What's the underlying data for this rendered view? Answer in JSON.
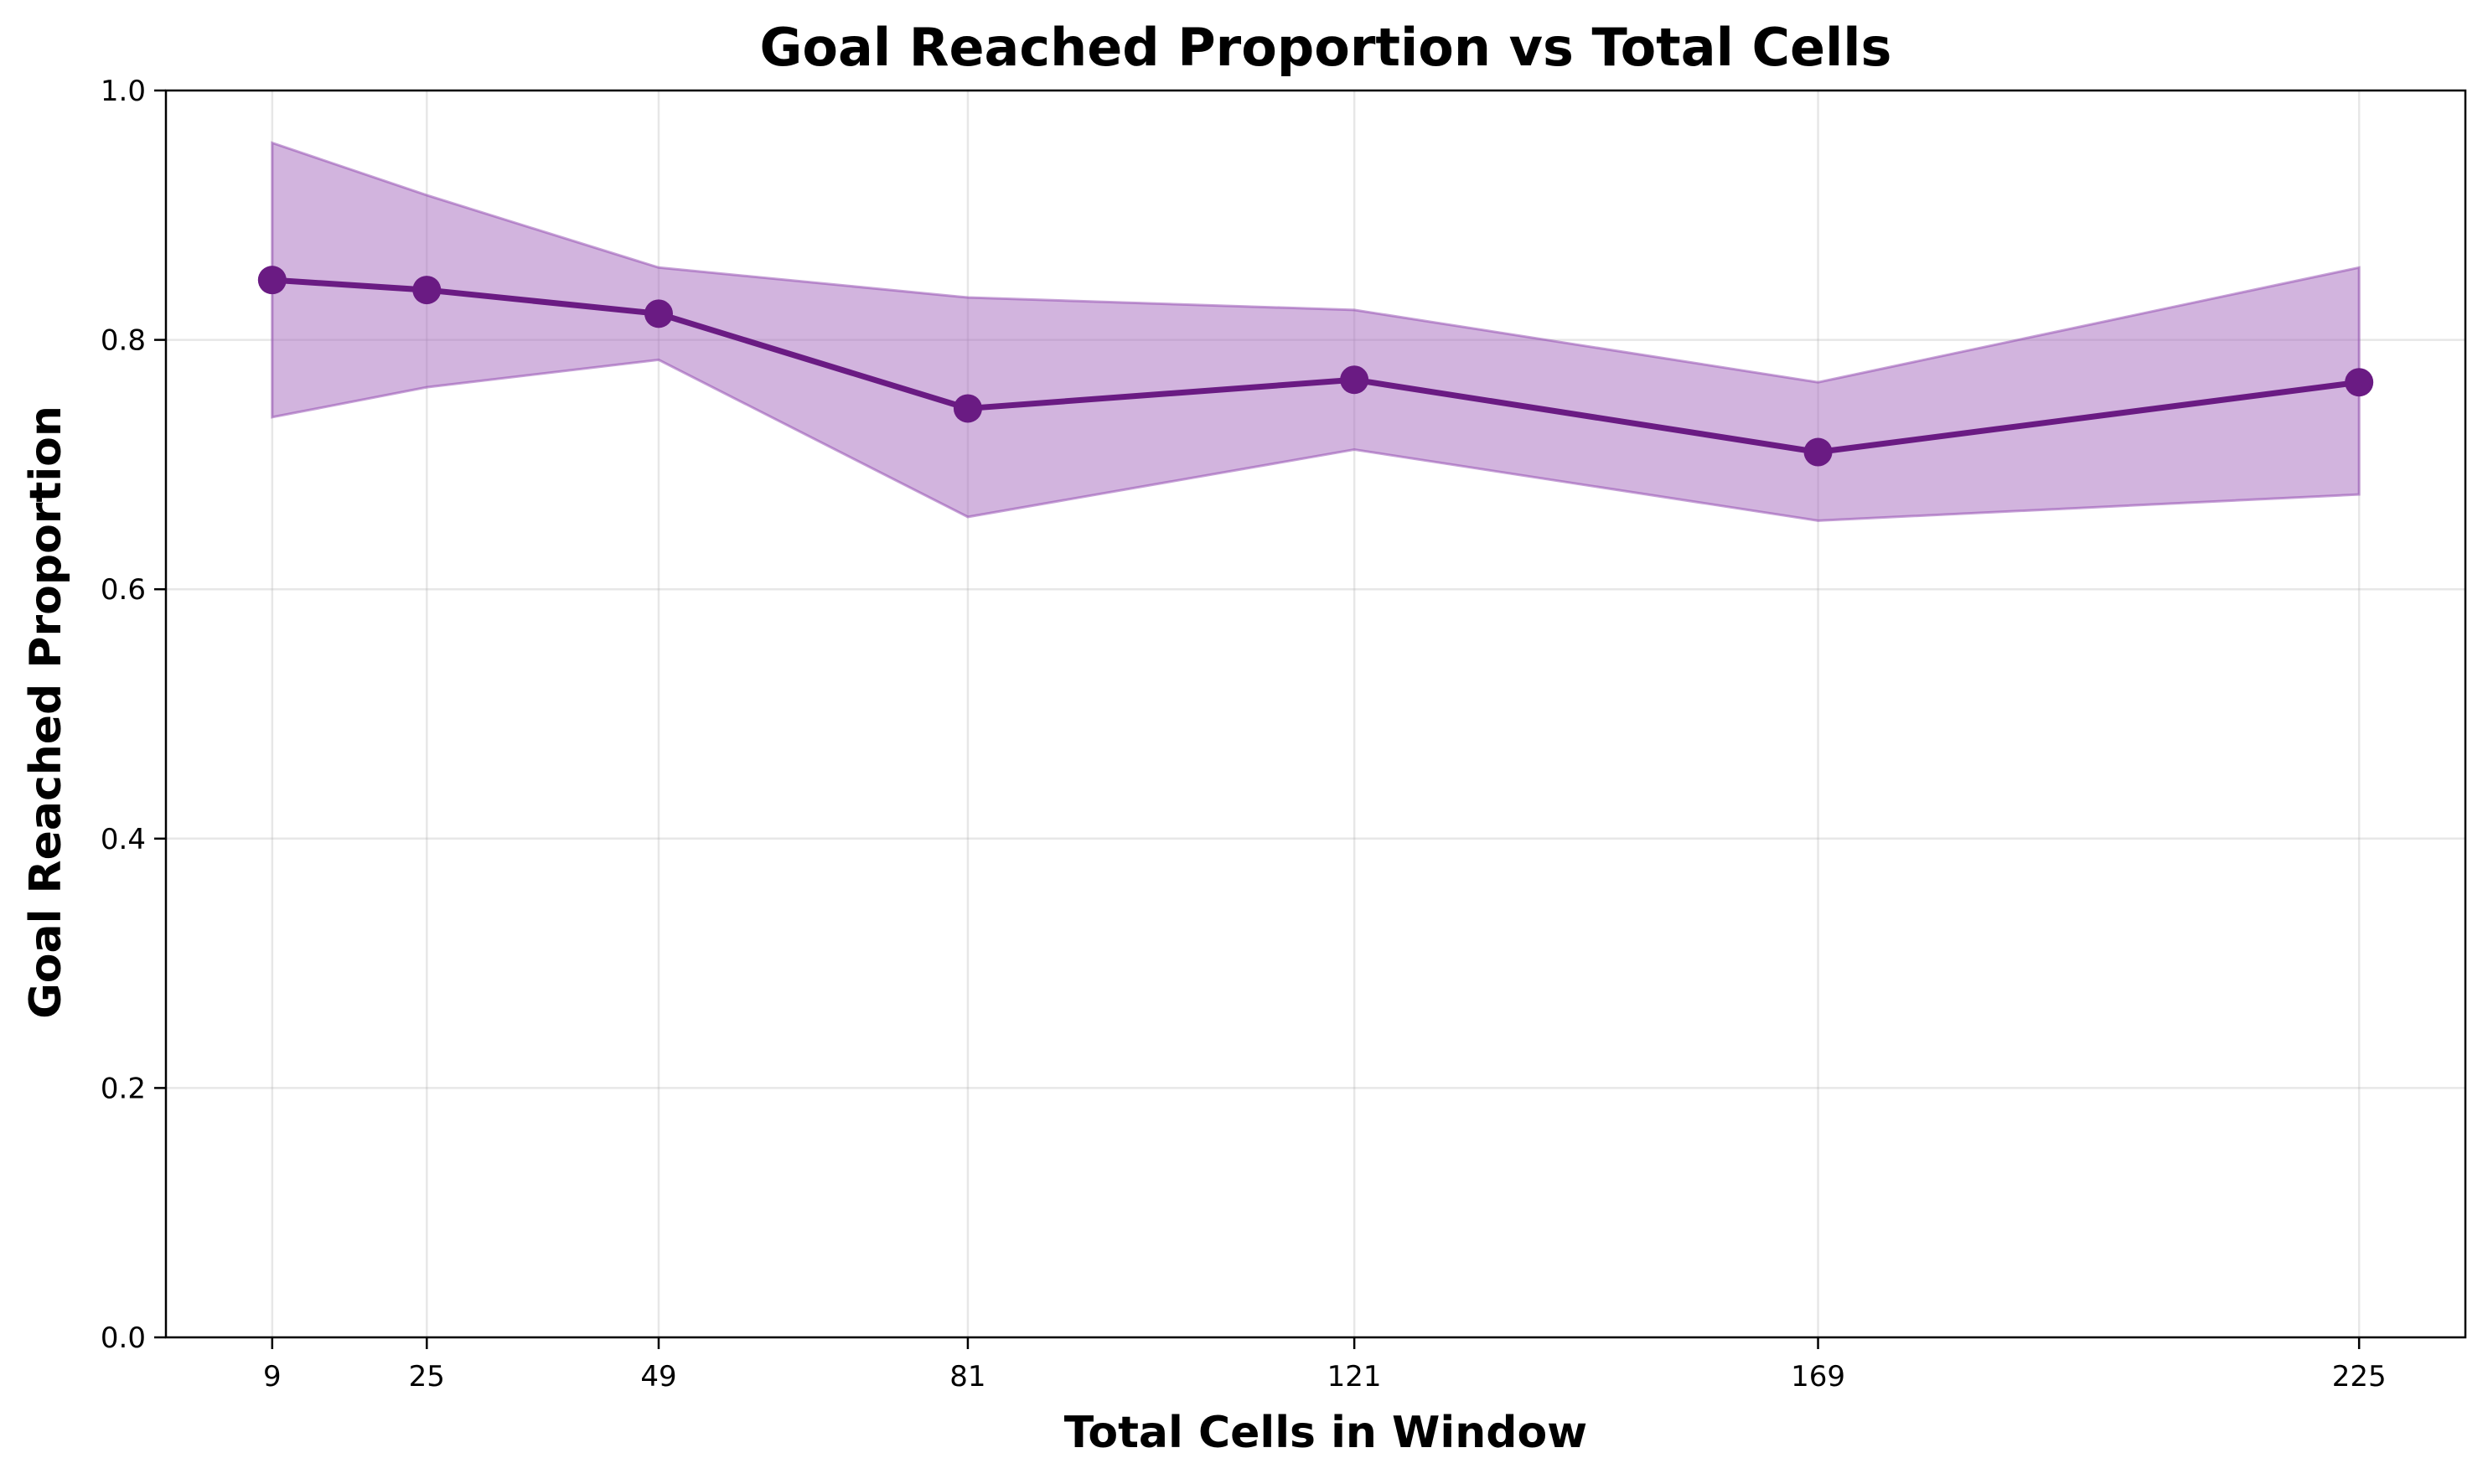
{
  "chart_data": {
    "type": "line",
    "title": "Goal Reached Proportion vs Total Cells",
    "xlabel": "Total Cells in Window",
    "ylabel": "Goal Reached Proportion",
    "x": [
      9,
      25,
      49,
      81,
      121,
      169,
      225
    ],
    "x_tick_labels": [
      "9",
      "25",
      "49",
      "81",
      "121",
      "169",
      "225"
    ],
    "xlim": [
      -2,
      236
    ],
    "ylim": [
      0.0,
      1.0
    ],
    "y_ticks": [
      0.0,
      0.2,
      0.4,
      0.6,
      0.8,
      1.0
    ],
    "y_tick_labels": [
      "0.0",
      "0.2",
      "0.4",
      "0.6",
      "0.8",
      "1.0"
    ],
    "series": [
      {
        "values": [
          0.848,
          0.84,
          0.821,
          0.745,
          0.768,
          0.71,
          0.766
        ],
        "band_upper": [
          0.958,
          0.916,
          0.858,
          0.834,
          0.824,
          0.766,
          0.858
        ],
        "band_lower": [
          0.738,
          0.762,
          0.784,
          0.658,
          0.712,
          0.655,
          0.676
        ]
      }
    ],
    "grid": true,
    "colors": {
      "line": "#6a1b83",
      "marker": "#6a1b83",
      "band_fill": "#a569bd",
      "band_edge": "#8e44ad"
    }
  }
}
